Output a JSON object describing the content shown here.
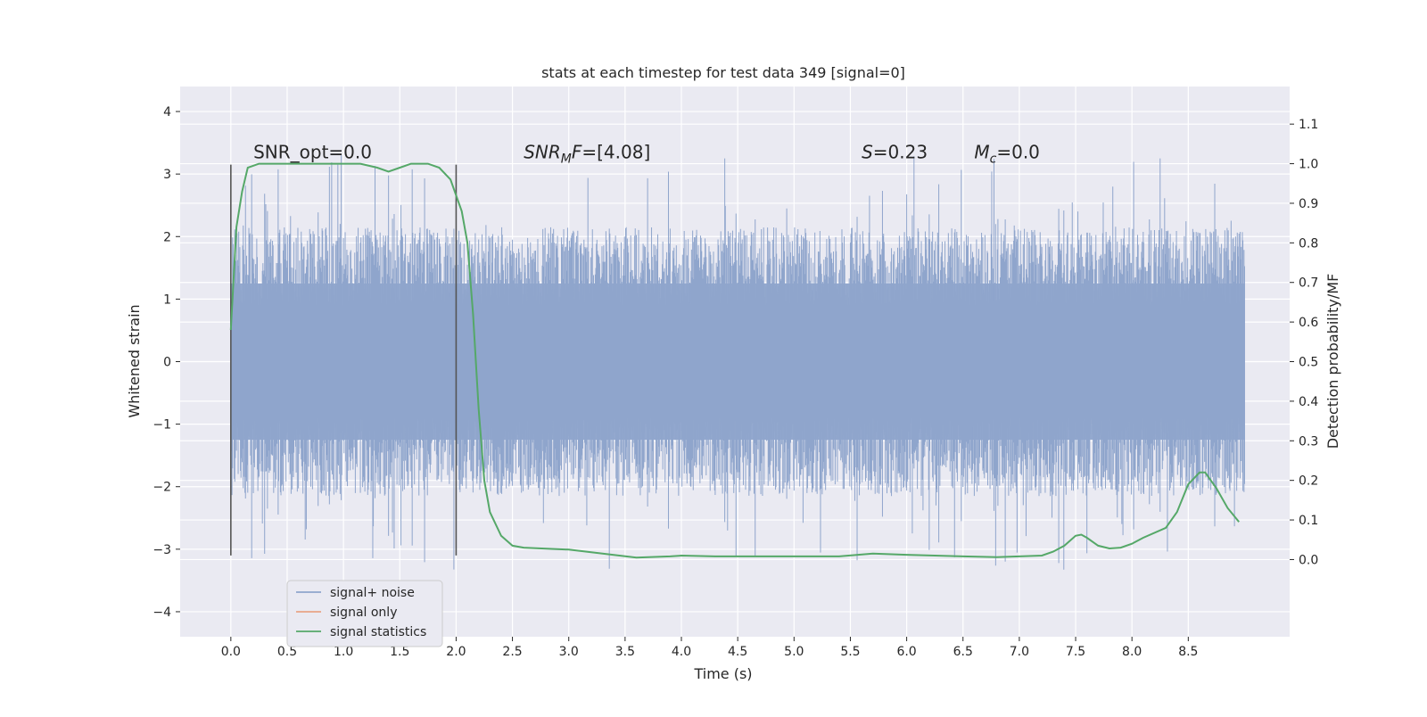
{
  "chart_data": {
    "type": "line",
    "title": "stats at each timestep for test data 349 [signal=0]",
    "xlabel": "Time (s)",
    "ylabel": "Whitened strain",
    "y2label": "Detection probability/MF",
    "xlim": [
      -0.45,
      9.4
    ],
    "ylim": [
      -4.4,
      4.4
    ],
    "y2lim": [
      -0.195,
      1.195
    ],
    "xticks": [
      0.0,
      0.5,
      1.0,
      1.5,
      2.0,
      2.5,
      3.0,
      3.5,
      4.0,
      4.5,
      5.0,
      5.5,
      6.0,
      6.5,
      7.0,
      7.5,
      8.0,
      8.5
    ],
    "yticks": [
      -4,
      -3,
      -2,
      -1,
      0,
      1,
      2,
      3,
      4
    ],
    "y2ticks": [
      0.0,
      0.1,
      0.2,
      0.3,
      0.4,
      0.5,
      0.6,
      0.7,
      0.8,
      0.9,
      1.0,
      1.1
    ],
    "xtick_labels": [
      "0.0",
      "0.5",
      "1.0",
      "1.5",
      "2.0",
      "2.5",
      "3.0",
      "3.5",
      "4.0",
      "4.5",
      "5.0",
      "5.5",
      "6.0",
      "6.5",
      "7.0",
      "7.5",
      "8.0",
      "8.5"
    ],
    "ytick_labels": [
      "−4",
      "−3",
      "−2",
      "−1",
      "0",
      "1",
      "2",
      "3",
      "4"
    ],
    "y2tick_labels": [
      "0.0",
      "0.1",
      "0.2",
      "0.3",
      "0.4",
      "0.5",
      "0.6",
      "0.7",
      "0.8",
      "0.9",
      "1.0",
      "1.1"
    ],
    "grid": true,
    "legend_placement": "lower-left",
    "series": [
      {
        "name": "signal+ noise",
        "color": "#8fa5cc",
        "axis": "left",
        "noise_band": {
          "x_start": 0.0,
          "x_end": 9.0,
          "typical_amplitude": 2.0,
          "max": 4.0,
          "min": -4.0
        }
      },
      {
        "name": "signal only",
        "color": "#e9a487",
        "axis": "left",
        "x": [],
        "y": []
      },
      {
        "name": "signal statistics",
        "color": "#55a868",
        "axis": "right",
        "x": [
          0.0,
          0.05,
          0.1,
          0.15,
          0.25,
          0.5,
          0.8,
          1.0,
          1.15,
          1.3,
          1.4,
          1.5,
          1.6,
          1.75,
          1.85,
          1.95,
          2.05,
          2.1,
          2.15,
          2.2,
          2.25,
          2.3,
          2.4,
          2.5,
          2.6,
          3.0,
          3.3,
          3.6,
          3.9,
          4.0,
          4.3,
          4.8,
          5.0,
          5.4,
          5.7,
          6.0,
          6.5,
          6.8,
          7.0,
          7.2,
          7.3,
          7.4,
          7.5,
          7.55,
          7.6,
          7.7,
          7.8,
          7.9,
          8.0,
          8.1,
          8.3,
          8.4,
          8.5,
          8.6,
          8.65,
          8.75,
          8.85,
          8.95
        ],
        "y": [
          0.58,
          0.84,
          0.93,
          0.99,
          1.0,
          1.0,
          1.0,
          1.0,
          1.0,
          0.99,
          0.98,
          0.99,
          1.0,
          1.0,
          0.99,
          0.96,
          0.88,
          0.8,
          0.62,
          0.38,
          0.2,
          0.12,
          0.06,
          0.035,
          0.03,
          0.025,
          0.015,
          0.005,
          0.008,
          0.01,
          0.008,
          0.008,
          0.008,
          0.008,
          0.015,
          0.012,
          0.008,
          0.006,
          0.008,
          0.01,
          0.02,
          0.035,
          0.06,
          0.063,
          0.055,
          0.035,
          0.028,
          0.03,
          0.04,
          0.055,
          0.08,
          0.12,
          0.19,
          0.22,
          0.22,
          0.18,
          0.13,
          0.095
        ]
      }
    ],
    "vlines": [
      {
        "x": 0.0,
        "ymin": -3.1,
        "ymax": 3.15,
        "color": "#555555"
      },
      {
        "x": 2.0,
        "ymin": -3.1,
        "ymax": 3.15,
        "color": "#555555"
      }
    ],
    "annotations": [
      {
        "text": "SNR_opt=0.0",
        "x": 0.2,
        "y": 3.25
      },
      {
        "text": "SNR",
        "sub": "M",
        "tail": "F=[4.08]",
        "x": 2.6,
        "y": 3.25
      },
      {
        "text": "S",
        "tail": "=0.23",
        "x": 5.6,
        "y": 3.25
      },
      {
        "text": "M",
        "sub": "c",
        "tail": "=0.0",
        "x": 6.6,
        "y": 3.25
      }
    ]
  }
}
